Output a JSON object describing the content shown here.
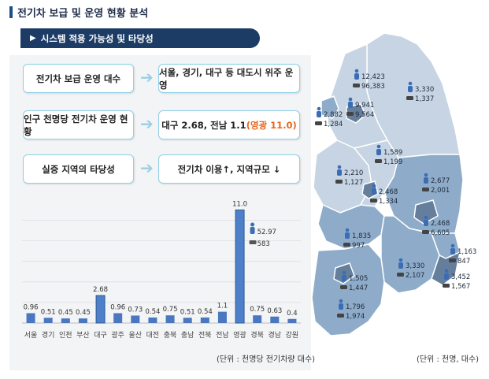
{
  "title": "전기차 보급 및 운영 현황 분석",
  "section": {
    "bullet": "▶",
    "label": "시스템 적용 가능성 및 타당성"
  },
  "rows": [
    {
      "left": "전기차 보급 운영 대수",
      "right": "서울, 경기, 대구 등 대도시 위주 운영"
    },
    {
      "left": "인구 천명당 전기차 운영 현황",
      "right_main": "대구 2.68, 전남 1.1",
      "right_highlight": "(영광 11.0)"
    },
    {
      "left": "실증 지역의 타당성",
      "right": "전기차 이용↑, 지역규모 ↓"
    }
  ],
  "chart_data": {
    "type": "bar",
    "categories": [
      "서울",
      "경기",
      "인천",
      "부산",
      "대구",
      "광주",
      "울산",
      "대전",
      "충북",
      "충남",
      "전북",
      "전남",
      "영광",
      "경북",
      "경남",
      "강원"
    ],
    "values": [
      0.96,
      0.51,
      0.45,
      0.45,
      2.68,
      0.96,
      0.73,
      0.54,
      0.75,
      0.51,
      0.54,
      1.1,
      11.0,
      0.75,
      0.63,
      0.4
    ],
    "value_labels": [
      "0.96",
      "0.51",
      "0.45",
      "0.45",
      "2.68",
      "0.96",
      "0.73",
      "0.54",
      "0.75",
      "0.51",
      "0.54",
      "1.1",
      "11.0",
      "0.75",
      "0.63",
      "0.4"
    ],
    "highlight_categories": [
      "대구",
      "영광"
    ],
    "ylim": [
      0,
      11.8
    ],
    "grid": true,
    "callout": {
      "value1": "52.97",
      "value2": "583"
    },
    "unit": "(단위 : 천명당 전기차량 대수)",
    "colors": {
      "bar": "#4a77bf",
      "highlight": "#4d80c8"
    }
  },
  "map": {
    "unit": "(단위 : 천명, 대수)",
    "colors": {
      "light": "#c6d4e3",
      "medium": "#8eacc9",
      "dark": "#647e9b",
      "icon": "#3a6db5"
    },
    "labels": [
      {
        "a": "12,423",
        "b": "96,383"
      },
      {
        "a": "3,330",
        "b": "1,337"
      },
      {
        "a": "2,882",
        "b": "1,284"
      },
      {
        "a": "9,941",
        "b": "9,564"
      },
      {
        "a": "1,589",
        "b": "1,199"
      },
      {
        "a": "2,210",
        "b": "1,127"
      },
      {
        "a": "2,677",
        "b": "2,001"
      },
      {
        "a": "2,468",
        "b": "1,334"
      },
      {
        "a": "2,468",
        "b": "6,605"
      },
      {
        "a": "1,835",
        "b": "997"
      },
      {
        "a": "1,163",
        "b": "847"
      },
      {
        "a": "3,330",
        "b": "2,107"
      },
      {
        "a": "1,505",
        "b": "1,447"
      },
      {
        "a": "3,452",
        "b": "1,567"
      },
      {
        "a": "1,796",
        "b": "1,974"
      }
    ]
  }
}
